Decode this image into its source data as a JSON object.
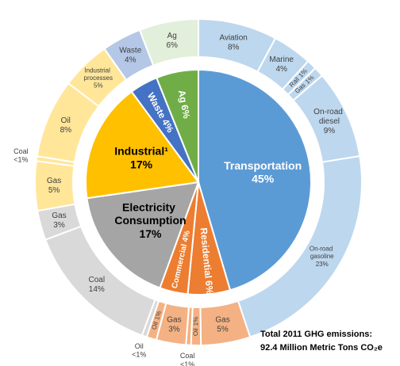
{
  "chart_data": {
    "type": "nested-donut",
    "inner": {
      "categories": [
        "Transportation",
        "Residential",
        "Commercial",
        "Electricity Consumption",
        "Industrial¹",
        "Waste",
        "Ag"
      ],
      "values": [
        45,
        6,
        4,
        17,
        17,
        4,
        6
      ],
      "value_labels": [
        "45%",
        "6%",
        "4%",
        "17%",
        "17%",
        "4%",
        "6%"
      ],
      "colors": [
        "#5b9bd5",
        "#ed7d31",
        "#ed7d31",
        "#a5a5a5",
        "#ffc000",
        "#4472c4",
        "#70ad47"
      ]
    },
    "outer": {
      "categories": [
        "Aviation",
        "Marine",
        "Rail",
        "Gas",
        "On-road diesel",
        "On-road gasoline",
        "Gas",
        "Oil",
        "Coal",
        "Gas",
        "Oil",
        "Oil",
        "Coal",
        "Gas",
        "Gas",
        "Coal",
        "Oil",
        "Industrial processes",
        "Waste",
        "Ag"
      ],
      "values": [
        8,
        4,
        1,
        1,
        9,
        23,
        5,
        1,
        0.5,
        3,
        1,
        0.5,
        14,
        3,
        5,
        0.5,
        8,
        5,
        4,
        6
      ],
      "value_labels": [
        "8%",
        "4%",
        "1%",
        "1%",
        "9%",
        "23%",
        "5%",
        "1%",
        "<1%",
        "3%",
        "1%",
        "<1%",
        "14%",
        "3%",
        "5%",
        "<1%",
        "8%",
        "5%",
        "4%",
        "6%"
      ],
      "colors": [
        "#bdd7ee",
        "#bdd7ee",
        "#bdd7ee",
        "#bdd7ee",
        "#bdd7ee",
        "#bdd7ee",
        "#f4b183",
        "#f4b183",
        "#f4b183",
        "#f4b183",
        "#f4b183",
        "#d9d9d9",
        "#d9d9d9",
        "#d9d9d9",
        "#ffe699",
        "#ffe699",
        "#ffe699",
        "#ffe699",
        "#b4c7e7",
        "#e2efda"
      ]
    },
    "note": [
      "Total 2011 GHG emissions:",
      "92.4 Million Metric Tons CO₂e"
    ]
  }
}
